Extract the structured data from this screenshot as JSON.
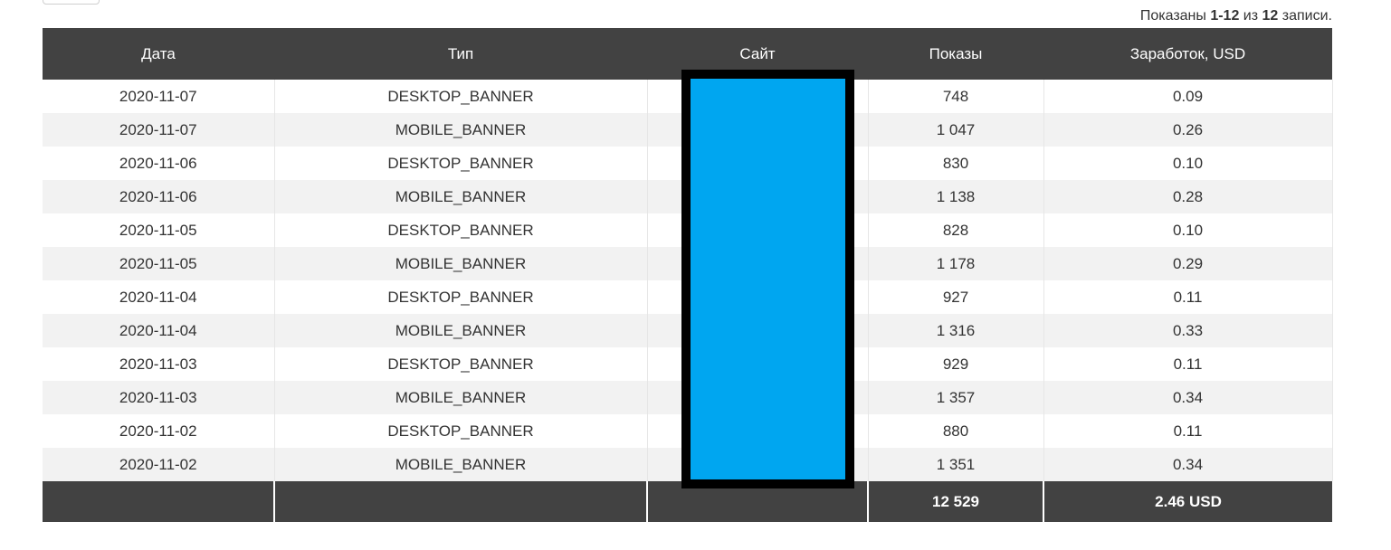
{
  "summary": {
    "prefix": "Показаны ",
    "range": "1-12",
    "middle": " из ",
    "total": "12",
    "suffix": " записи."
  },
  "table": {
    "headers": {
      "date": "Дата",
      "type": "Тип",
      "site": "Сайт",
      "impressions": "Показы",
      "earnings": "Заработок, USD"
    },
    "rows": [
      {
        "date": "2020-11-07",
        "type": "DESKTOP_BANNER",
        "site": "",
        "impressions": "748",
        "earnings": "0.09"
      },
      {
        "date": "2020-11-07",
        "type": "MOBILE_BANNER",
        "site": "",
        "impressions": "1 047",
        "earnings": "0.26"
      },
      {
        "date": "2020-11-06",
        "type": "DESKTOP_BANNER",
        "site": "",
        "impressions": "830",
        "earnings": "0.10"
      },
      {
        "date": "2020-11-06",
        "type": "MOBILE_BANNER",
        "site": "",
        "impressions": "1 138",
        "earnings": "0.28"
      },
      {
        "date": "2020-11-05",
        "type": "DESKTOP_BANNER",
        "site": "",
        "impressions": "828",
        "earnings": "0.10"
      },
      {
        "date": "2020-11-05",
        "type": "MOBILE_BANNER",
        "site": "",
        "impressions": "1 178",
        "earnings": "0.29"
      },
      {
        "date": "2020-11-04",
        "type": "DESKTOP_BANNER",
        "site": "",
        "impressions": "927",
        "earnings": "0.11"
      },
      {
        "date": "2020-11-04",
        "type": "MOBILE_BANNER",
        "site": "",
        "impressions": "1 316",
        "earnings": "0.33"
      },
      {
        "date": "2020-11-03",
        "type": "DESKTOP_BANNER",
        "site": "",
        "impressions": "929",
        "earnings": "0.11"
      },
      {
        "date": "2020-11-03",
        "type": "MOBILE_BANNER",
        "site": "",
        "impressions": "1 357",
        "earnings": "0.34"
      },
      {
        "date": "2020-11-02",
        "type": "DESKTOP_BANNER",
        "site": "",
        "impressions": "880",
        "earnings": "0.11"
      },
      {
        "date": "2020-11-02",
        "type": "MOBILE_BANNER",
        "site": "",
        "impressions": "1 351",
        "earnings": "0.34"
      }
    ],
    "totals": {
      "date": "",
      "type": "",
      "site": "",
      "impressions": "12 529",
      "earnings": "2.46 USD"
    }
  },
  "colors": {
    "header_bg": "#424242",
    "row_stripe": "#f2f2f2",
    "redaction_fill": "#00a6f0",
    "redaction_border": "#000000"
  }
}
